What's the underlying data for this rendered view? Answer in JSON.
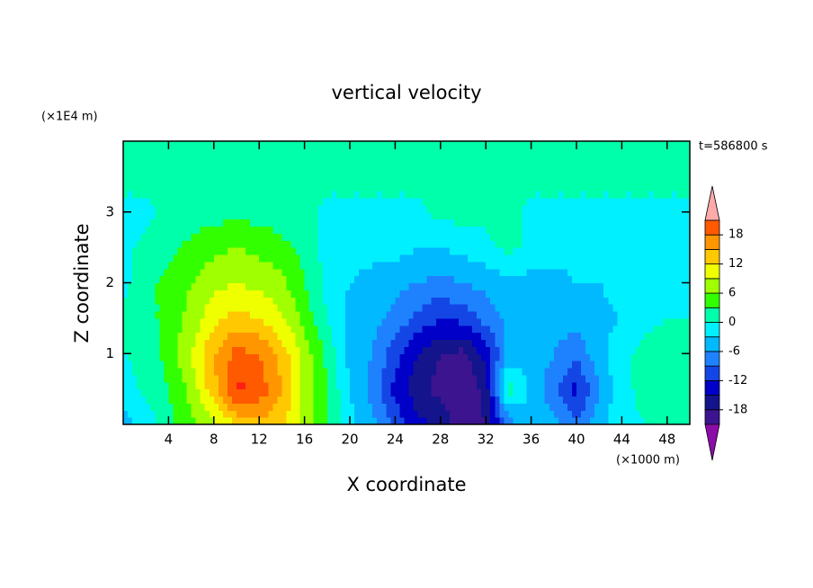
{
  "chart_data": {
    "type": "contour",
    "title": "vertical velocity",
    "x_label": "X coordinate",
    "y_label": "Z coordinate",
    "x_unit": "(×1000 m)",
    "y_unit": "(×1E4 m)",
    "time_label": "t=586800 s",
    "xlim": [
      0,
      50
    ],
    "ylim": [
      0,
      4
    ],
    "xticks": [
      4,
      8,
      12,
      16,
      20,
      24,
      28,
      32,
      36,
      40,
      44,
      48
    ],
    "yticks": [
      1,
      2,
      3
    ],
    "x": [
      0,
      2,
      4,
      6,
      8,
      10,
      12,
      14,
      16,
      18,
      20,
      22,
      24,
      26,
      28,
      30,
      32,
      34,
      36,
      38,
      40,
      42,
      44,
      46,
      48,
      50
    ],
    "y": [
      0,
      0.5,
      1,
      1.5,
      2,
      2.5,
      3,
      3.5,
      4
    ],
    "z": [
      [
        -4,
        -2,
        2,
        5,
        8,
        12,
        14,
        13,
        8,
        3,
        -2,
        -5,
        -10,
        -14,
        -16,
        -20,
        -18,
        -8,
        -3,
        -5,
        -9,
        -4,
        -1,
        0,
        2,
        1
      ],
      [
        -2,
        1,
        3,
        7,
        14,
        22,
        20,
        15,
        8,
        3,
        -3,
        -7,
        -13,
        -17,
        -19,
        -21,
        -17,
        2,
        -4,
        -8,
        -13,
        -6,
        -1,
        1,
        3,
        1
      ],
      [
        0,
        1,
        4,
        9,
        15,
        19,
        18,
        14,
        8,
        2,
        -4,
        -6,
        -11,
        -15,
        -18,
        -19,
        -14,
        -5,
        -4,
        -6,
        -8,
        -4,
        -1,
        1,
        2,
        1
      ],
      [
        1,
        2,
        4,
        7,
        11,
        13,
        12,
        9,
        5,
        0,
        -4,
        -5,
        -7,
        -10,
        -12,
        -11,
        -8,
        -5,
        -5,
        -5,
        -5,
        -4,
        -3,
        -1,
        0,
        0
      ],
      [
        -1,
        2,
        4,
        6,
        8,
        9,
        8,
        7,
        3,
        -1,
        -3,
        -4,
        -5,
        -6,
        -7,
        -6,
        -5,
        -4,
        -4,
        -4,
        -3,
        -3,
        -2,
        -2,
        -1,
        -1
      ],
      [
        -1,
        1,
        2,
        4,
        5,
        6,
        5,
        4,
        2,
        -1,
        -2,
        -2,
        -2,
        -3,
        -3,
        -2,
        -1,
        1,
        -1,
        -2,
        -2,
        -1,
        -1,
        -1,
        -1,
        -1
      ],
      [
        -1,
        -1,
        1,
        1,
        2,
        2,
        2,
        1,
        1,
        -1,
        -1,
        -1,
        -1,
        -1,
        1,
        1,
        1,
        1,
        -1,
        -1,
        -1,
        -1,
        -1,
        -1,
        -1,
        -1
      ],
      [
        1,
        1,
        1,
        1,
        1,
        1,
        1,
        1,
        1,
        1,
        1,
        1,
        1,
        1,
        1,
        1,
        1,
        1,
        1,
        1,
        1,
        1,
        1,
        1,
        1,
        1
      ],
      [
        1,
        1,
        1,
        1,
        1,
        1,
        1,
        1,
        1,
        1,
        1,
        1,
        1,
        1,
        1,
        1,
        1,
        1,
        1,
        1,
        1,
        1,
        1,
        1,
        1,
        1
      ]
    ],
    "levels": [
      -21,
      -18,
      -15,
      -12,
      -9,
      -6,
      -3,
      0,
      3,
      6,
      9,
      12,
      15,
      18,
      21
    ],
    "colors": [
      "#8c0ca8",
      "#3c1490",
      "#14148c",
      "#0000c8",
      "#1446e6",
      "#1e82ff",
      "#00b9ff",
      "#00f0ff",
      "#00ffaa",
      "#32ff00",
      "#a0ff00",
      "#f0ff00",
      "#ffc800",
      "#ff9600",
      "#ff5a00",
      "#ff1e14",
      "#ffaaaa"
    ],
    "colorbar_ticks": [
      -18,
      -12,
      -6,
      0,
      6,
      12,
      18
    ]
  }
}
